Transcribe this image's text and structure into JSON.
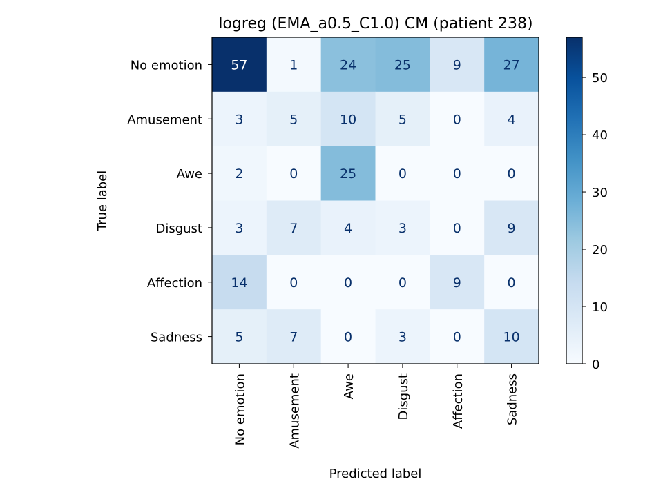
{
  "chart_data": {
    "type": "heatmap",
    "title": "logreg (EMA_a0.5_C1.0) CM (patient 238)",
    "xlabel": "Predicted label",
    "ylabel": "True label",
    "x_categories": [
      "No emotion",
      "Amusement",
      "Awe",
      "Disgust",
      "Affection",
      "Sadness"
    ],
    "y_categories": [
      "No emotion",
      "Amusement",
      "Awe",
      "Disgust",
      "Affection",
      "Sadness"
    ],
    "values": [
      [
        57,
        1,
        24,
        25,
        9,
        27
      ],
      [
        3,
        5,
        10,
        5,
        0,
        4
      ],
      [
        2,
        0,
        25,
        0,
        0,
        0
      ],
      [
        3,
        7,
        4,
        3,
        0,
        9
      ],
      [
        14,
        0,
        0,
        0,
        9,
        0
      ],
      [
        5,
        7,
        0,
        3,
        0,
        10
      ]
    ],
    "colormap": "Blues",
    "color_range": [
      0,
      57
    ],
    "colorbar_ticks": [
      0,
      10,
      20,
      30,
      40,
      50
    ],
    "text_colors": {
      "light": "#ffffff",
      "dark": "#08306b"
    }
  }
}
